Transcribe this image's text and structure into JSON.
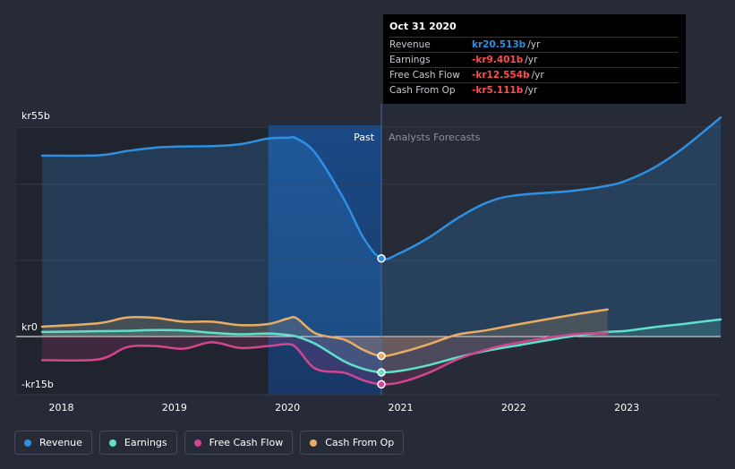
{
  "chart_data": {
    "type": "line",
    "title": "",
    "y_axis_labels": [
      "kr55b",
      "kr0",
      "-kr15b"
    ],
    "ylim": [
      -15,
      60
    ],
    "x_ticks": [
      "2018",
      "2019",
      "2020",
      "2021",
      "2022",
      "2023"
    ],
    "x_tick_values": [
      2018.0,
      2019.0,
      2020.0,
      2021.0,
      2022.0,
      2023.0
    ],
    "xlim": [
      2017.6,
      2023.83
    ],
    "past_label": "Past",
    "forecast_label": "Analysts Forecasts",
    "divider_x": 2020.83,
    "highlight_start_x": 2019.83,
    "series": [
      {
        "name": "Revenue",
        "key": "revenue",
        "color": "#2f8fe0",
        "x": [
          2017.83,
          2018.33,
          2018.58,
          2018.83,
          2019.08,
          2019.33,
          2019.58,
          2019.83,
          2020.0,
          2020.08,
          2020.25,
          2020.5,
          2020.67,
          2020.83,
          2021.0,
          2021.25,
          2021.5,
          2021.75,
          2022.0,
          2022.5,
          2022.83,
          2023.0,
          2023.25,
          2023.5,
          2023.83
        ],
        "values": [
          47.5,
          47.6,
          48.7,
          49.6,
          49.9,
          50.0,
          50.5,
          52.0,
          52.2,
          52.0,
          48.0,
          36.0,
          26.0,
          20.5,
          22.0,
          26.0,
          31.0,
          35.0,
          37.0,
          38.2,
          39.6,
          41.0,
          44.5,
          49.5,
          57.5
        ]
      },
      {
        "name": "Earnings",
        "key": "earnings",
        "color": "#5fe0c9",
        "x": [
          2017.83,
          2018.33,
          2018.58,
          2018.83,
          2019.08,
          2019.33,
          2019.58,
          2019.83,
          2020.0,
          2020.08,
          2020.25,
          2020.5,
          2020.67,
          2020.83,
          2021.0,
          2021.25,
          2021.5,
          2021.75,
          2022.0,
          2022.5,
          2022.83,
          2023.0,
          2023.25,
          2023.5,
          2023.83
        ],
        "values": [
          1.2,
          1.4,
          1.5,
          1.7,
          1.6,
          1.0,
          0.6,
          0.8,
          0.4,
          0.0,
          -2.0,
          -6.5,
          -8.5,
          -9.4,
          -9.0,
          -7.5,
          -5.5,
          -3.8,
          -2.5,
          0.0,
          1.2,
          1.5,
          2.5,
          3.3,
          4.5
        ]
      },
      {
        "name": "Free Cash Flow",
        "key": "fcf",
        "color": "#d2458f",
        "x": [
          2017.83,
          2018.33,
          2018.58,
          2018.83,
          2019.08,
          2019.33,
          2019.58,
          2019.83,
          2020.0,
          2020.08,
          2020.25,
          2020.5,
          2020.67,
          2020.83,
          2021.0,
          2021.25,
          2021.5,
          2021.75,
          2022.0,
          2022.5,
          2022.83
        ],
        "values": [
          -6.2,
          -6.0,
          -2.8,
          -2.5,
          -3.2,
          -1.5,
          -3.0,
          -2.5,
          -2.0,
          -3.0,
          -8.5,
          -9.5,
          -11.5,
          -12.55,
          -12.0,
          -9.5,
          -6.0,
          -3.5,
          -1.8,
          0.5,
          1.0
        ]
      },
      {
        "name": "Cash From Op",
        "key": "cfo",
        "color": "#e8ad65",
        "x": [
          2017.83,
          2018.33,
          2018.58,
          2018.83,
          2019.08,
          2019.33,
          2019.58,
          2019.83,
          2020.0,
          2020.08,
          2020.25,
          2020.5,
          2020.67,
          2020.83,
          2021.0,
          2021.25,
          2021.5,
          2021.75,
          2022.0,
          2022.5,
          2022.83
        ],
        "values": [
          2.6,
          3.5,
          5.0,
          4.9,
          3.9,
          3.9,
          3.0,
          3.3,
          4.7,
          4.8,
          0.8,
          -0.8,
          -3.5,
          -5.1,
          -4.2,
          -2.0,
          0.5,
          1.6,
          3.0,
          5.6,
          7.1
        ]
      }
    ],
    "markers": [
      {
        "key": "revenue",
        "x": 2020.83,
        "value": 20.5
      },
      {
        "key": "earnings",
        "x": 2020.83,
        "value": -9.4
      },
      {
        "key": "fcf",
        "x": 2020.83,
        "value": -12.55
      },
      {
        "key": "cfo",
        "x": 2020.83,
        "value": -5.1
      }
    ]
  },
  "tooltip": {
    "date": "Oct 31 2020",
    "rows": [
      {
        "name": "Revenue",
        "value": "kr20.513b",
        "unit": "/yr",
        "color": "#2f8fe0"
      },
      {
        "name": "Earnings",
        "value": "-kr9.401b",
        "unit": "/yr",
        "color": "#ff4d4d"
      },
      {
        "name": "Free Cash Flow",
        "value": "-kr12.554b",
        "unit": "/yr",
        "color": "#ff4d4d"
      },
      {
        "name": "Cash From Op",
        "value": "-kr5.111b",
        "unit": "/yr",
        "color": "#ff4d4d"
      }
    ]
  },
  "legend": [
    {
      "label": "Revenue",
      "color": "#2f8fe0"
    },
    {
      "label": "Earnings",
      "color": "#5fe0c9"
    },
    {
      "label": "Free Cash Flow",
      "color": "#d2458f"
    },
    {
      "label": "Cash From Op",
      "color": "#e8ad65"
    }
  ]
}
